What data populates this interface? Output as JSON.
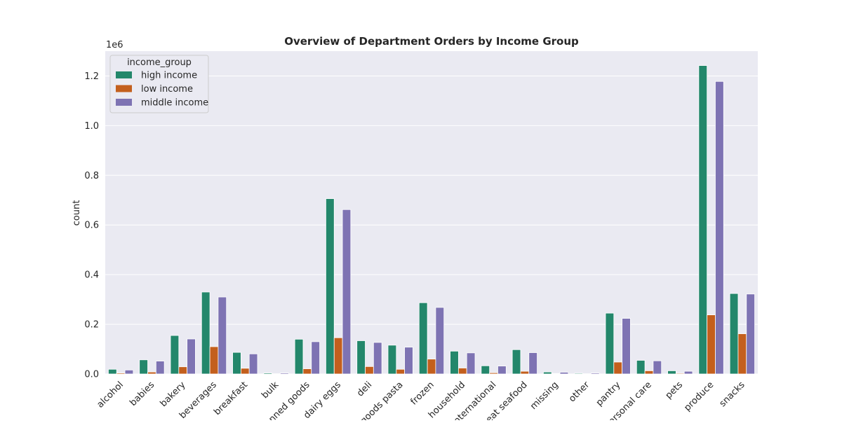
{
  "chart_data": {
    "type": "bar",
    "title": "Overview of Department Orders by Income Group",
    "xlabel": "",
    "ylabel": "count",
    "y_offset_label": "1e6",
    "ylim": [
      0,
      1.3
    ],
    "yticks": [
      "0.0",
      "0.2",
      "0.4",
      "0.6",
      "0.8",
      "1.0",
      "1.2"
    ],
    "ytick_values": [
      0,
      0.2,
      0.4,
      0.6,
      0.8,
      1.0,
      1.2
    ],
    "grid": true,
    "legend_placement": "top-left",
    "legend_title": "income_group",
    "categories": [
      "alcohol",
      "babies",
      "bakery",
      "beverages",
      "breakfast",
      "bulk",
      "canned goods",
      "dairy eggs",
      "deli",
      "dry goods pasta",
      "frozen",
      "household",
      "international",
      "meat seafood",
      "missing",
      "other",
      "pantry",
      "personal care",
      "pets",
      "produce",
      "snacks"
    ],
    "series": [
      {
        "name": "high income",
        "color": "#23876b",
        "values": [
          0.019,
          0.057,
          0.155,
          0.33,
          0.087,
          0.004,
          0.14,
          0.706,
          0.134,
          0.116,
          0.287,
          0.092,
          0.033,
          0.098,
          0.008,
          0.003,
          0.245,
          0.055,
          0.013,
          1.242,
          0.324
        ]
      },
      {
        "name": "low income",
        "color": "#c35f1d",
        "values": [
          0.004,
          0.008,
          0.029,
          0.11,
          0.023,
          0.001,
          0.021,
          0.146,
          0.03,
          0.019,
          0.06,
          0.024,
          0.005,
          0.011,
          0.002,
          0.001,
          0.048,
          0.013,
          0.003,
          0.238,
          0.162
        ]
      },
      {
        "name": "middle income",
        "color": "#7e73b3",
        "values": [
          0.016,
          0.052,
          0.141,
          0.31,
          0.081,
          0.004,
          0.13,
          0.662,
          0.127,
          0.108,
          0.268,
          0.085,
          0.032,
          0.086,
          0.007,
          0.004,
          0.224,
          0.053,
          0.011,
          1.178,
          0.322
        ]
      }
    ]
  }
}
